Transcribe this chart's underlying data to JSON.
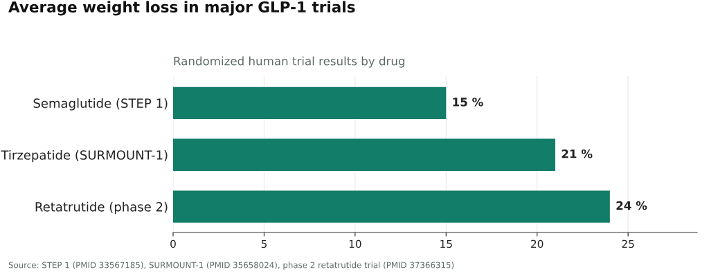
{
  "chart_data": {
    "type": "bar",
    "orientation": "horizontal",
    "title": "Average weight loss in major GLP-1 trials",
    "subtitle": "Randomized human trial results by drug",
    "categories": [
      "Semaglutide (STEP 1)",
      "Tirzepatide (SURMOUNT-1)",
      "Retatrutide (phase 2)"
    ],
    "values": [
      15,
      21,
      24
    ],
    "value_labels": [
      "15 %",
      "21 %",
      "24 %"
    ],
    "color": "#127d68",
    "xlim": [
      0,
      28.8
    ],
    "xticks": [
      0,
      5,
      10,
      15,
      20,
      25
    ],
    "grid": "x",
    "legend": false,
    "annotations": [
      "Source: STEP 1 (PMID 33567185), SURMOUNT-1 (PMID 35658024), phase 2 retatrutide trial (PMID 37366315)"
    ]
  }
}
